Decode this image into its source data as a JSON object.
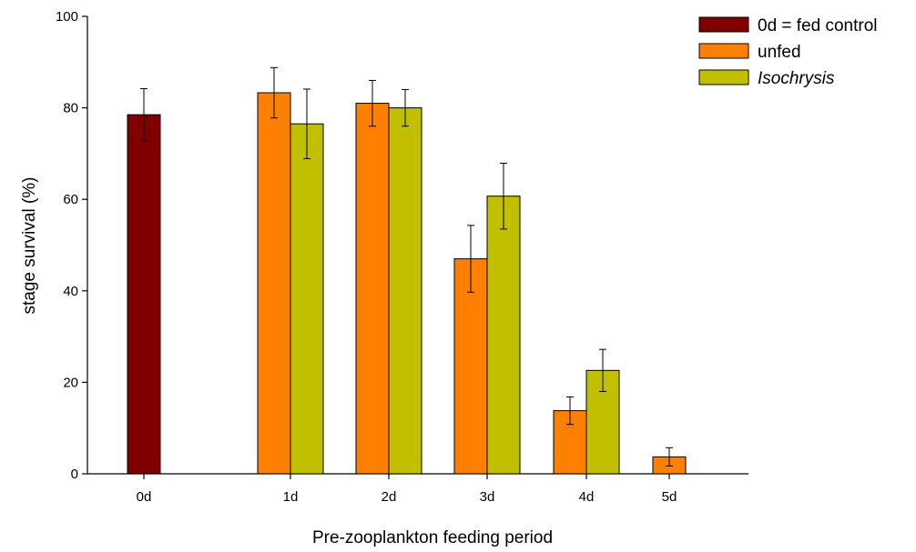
{
  "chart_data": {
    "type": "bar",
    "categories": [
      "0d",
      "1d",
      "2d",
      "3d",
      "4d",
      "5d"
    ],
    "series": [
      {
        "name": "0d = fed control",
        "italic": false,
        "color": "#800000",
        "values": [
          78.5,
          null,
          null,
          null,
          null,
          null
        ],
        "errors": [
          5.7,
          null,
          null,
          null,
          null,
          null
        ]
      },
      {
        "name": "unfed",
        "italic": false,
        "color": "#FF8000",
        "values": [
          null,
          83.3,
          81.0,
          47.0,
          13.8,
          3.7
        ],
        "errors": [
          null,
          5.5,
          5.0,
          7.3,
          3.0,
          2.0
        ]
      },
      {
        "name": "Isochrysis",
        "italic": true,
        "color": "#C0C000",
        "values": [
          null,
          76.5,
          80.0,
          60.7,
          22.6,
          null
        ],
        "errors": [
          null,
          7.6,
          4.0,
          7.2,
          4.6,
          null
        ]
      }
    ],
    "xlabel": "Pre-zooplankton feeding period",
    "ylabel": "stage survival (%)",
    "ylim": [
      0,
      100
    ],
    "yticks": [
      0,
      20,
      40,
      60,
      80,
      100
    ],
    "grid": false,
    "legend_position": "top-right"
  }
}
